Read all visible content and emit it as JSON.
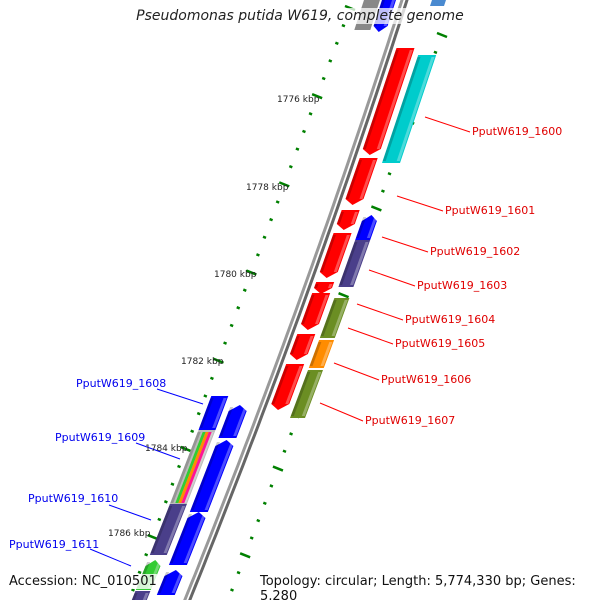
{
  "title": "Pseudomonas putida W619, complete genome",
  "footer": {
    "accession": "Accession: NC_010501",
    "summary": "Topology: circular; Length: 5,774,330 bp; Genes: 5,280"
  },
  "kbp_labels": [
    "1776 kbp",
    "1778 kbp",
    "1780 kbp",
    "1782 kbp",
    "1784 kbp",
    "1786 kbp"
  ],
  "genes_forward": [
    "PputW619_1600",
    "PputW619_1601",
    "PputW619_1602",
    "PputW619_1603",
    "PputW619_1604",
    "PputW619_1605",
    "PputW619_1606",
    "PputW619_1607"
  ],
  "genes_reverse": [
    "PputW619_1608",
    "PputW619_1609",
    "PputW619_1610",
    "PputW619_1611"
  ],
  "colors": {
    "forward_label": "#e00000",
    "reverse_label": "#0000ee",
    "cds_forward": "#ff0000",
    "cds_reverse": "#0000ff",
    "tick": "#008000",
    "backbone": "#808080",
    "cyan": "#00cccc",
    "purple": "#4a3f8a",
    "olive": "#6b8e23",
    "orange": "#ff8c00",
    "green": "#33cc33"
  }
}
